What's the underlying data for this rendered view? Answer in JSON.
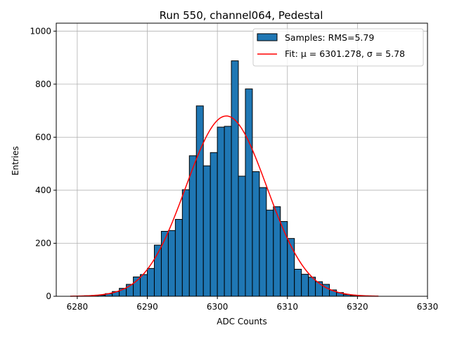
{
  "chart_data": {
    "type": "bar",
    "title": "Run 550, channel064, Pedestal",
    "xlabel": "ADC Counts",
    "ylabel": "Entries",
    "xlim": [
      6277,
      6330
    ],
    "ylim": [
      0,
      1030
    ],
    "xticks": [
      6280,
      6290,
      6300,
      6310,
      6320,
      6330
    ],
    "yticks": [
      0,
      200,
      400,
      600,
      800,
      1000
    ],
    "grid": true,
    "legend": {
      "placement": "top-right",
      "entries": [
        {
          "kind": "bar",
          "label": "Samples: RMS=5.79"
        },
        {
          "kind": "line",
          "label": "Fit: μ = 6301.278, σ = 5.78"
        }
      ]
    },
    "histogram": {
      "bin_starts": [
        6280,
        6281,
        6282,
        6283,
        6284,
        6285,
        6286,
        6287,
        6288,
        6289,
        6290,
        6291,
        6292,
        6293,
        6294,
        6295,
        6296,
        6297,
        6298,
        6299,
        6300,
        6301,
        6302,
        6303,
        6304,
        6305,
        6306,
        6307,
        6308,
        6309,
        6310,
        6311,
        6312,
        6313,
        6314,
        6315,
        6316,
        6317,
        6318,
        6319,
        6320,
        6321,
        6322
      ],
      "bin_width": 1,
      "values": [
        1,
        2,
        3,
        4,
        10,
        18,
        30,
        45,
        73,
        82,
        105,
        193,
        245,
        248,
        290,
        402,
        530,
        718,
        492,
        542,
        638,
        641,
        888,
        453,
        782,
        470,
        410,
        325,
        338,
        282,
        218,
        102,
        83,
        72,
        55,
        45,
        24,
        14,
        6,
        3,
        1,
        0,
        0
      ]
    },
    "fit": {
      "mu": 6301.278,
      "sigma": 5.78,
      "amplitude": 680,
      "x_range": [
        6279,
        6323
      ]
    },
    "colors": {
      "bar_fill": "#1f77b4",
      "bar_edge": "#000000",
      "fit_line": "#ff0000",
      "grid": "#b0b0b0"
    }
  }
}
